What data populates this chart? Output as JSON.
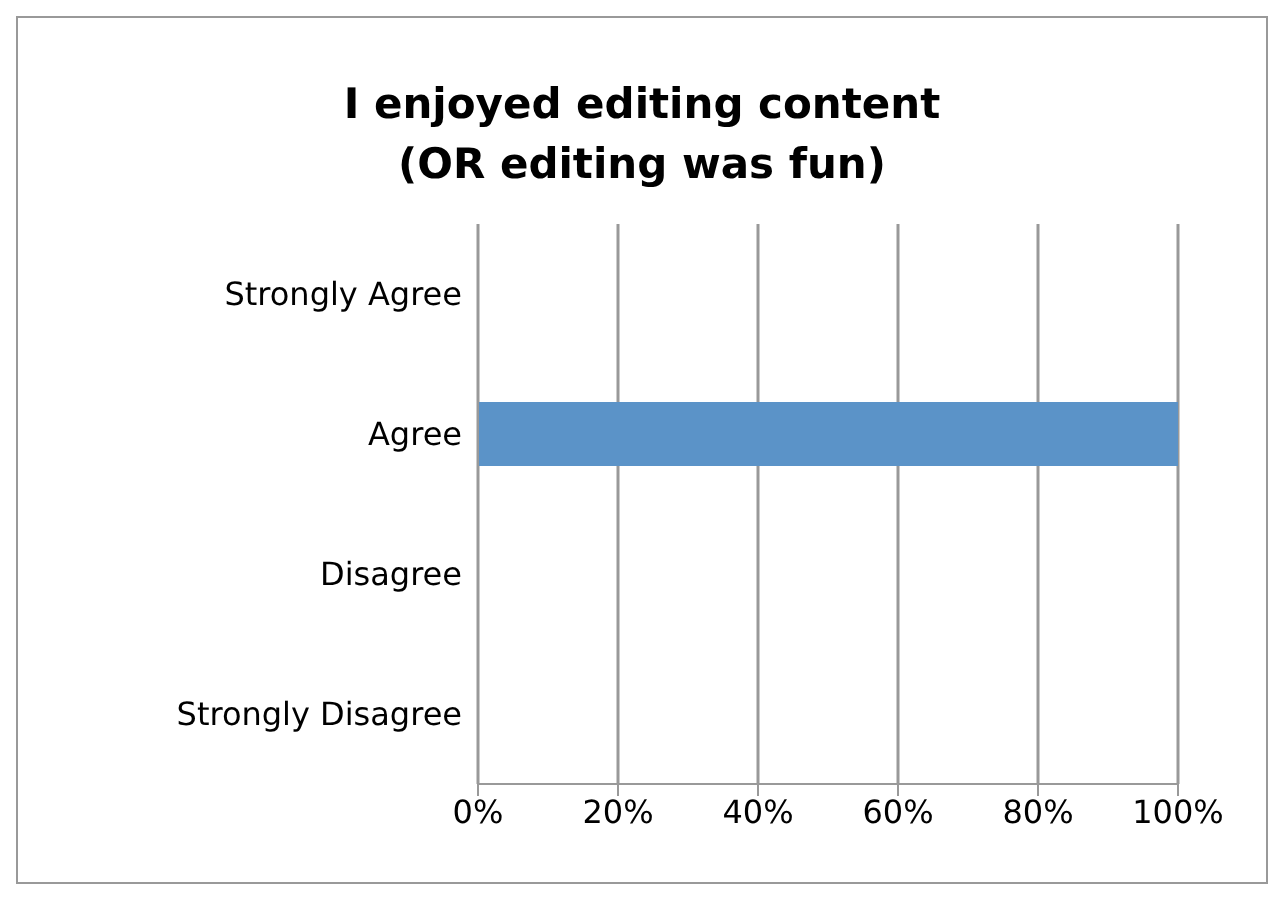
{
  "chart_data": {
    "type": "bar",
    "orientation": "horizontal",
    "title": "I enjoyed editing content\n(OR editing was fun)",
    "categories": [
      "Strongly Agree",
      "Agree",
      "Disagree",
      "Strongly Disagree"
    ],
    "values": [
      0,
      100,
      0,
      0
    ],
    "color": "#5b93c8",
    "xlim": [
      0,
      100
    ],
    "xticks": [
      {
        "value": 0,
        "label": "0%"
      },
      {
        "value": 20,
        "label": "20%"
      },
      {
        "value": 40,
        "label": "40%"
      },
      {
        "value": 60,
        "label": "60%"
      },
      {
        "value": 80,
        "label": "80%"
      },
      {
        "value": 100,
        "label": "100%"
      }
    ],
    "grid": "x",
    "legend": false
  }
}
